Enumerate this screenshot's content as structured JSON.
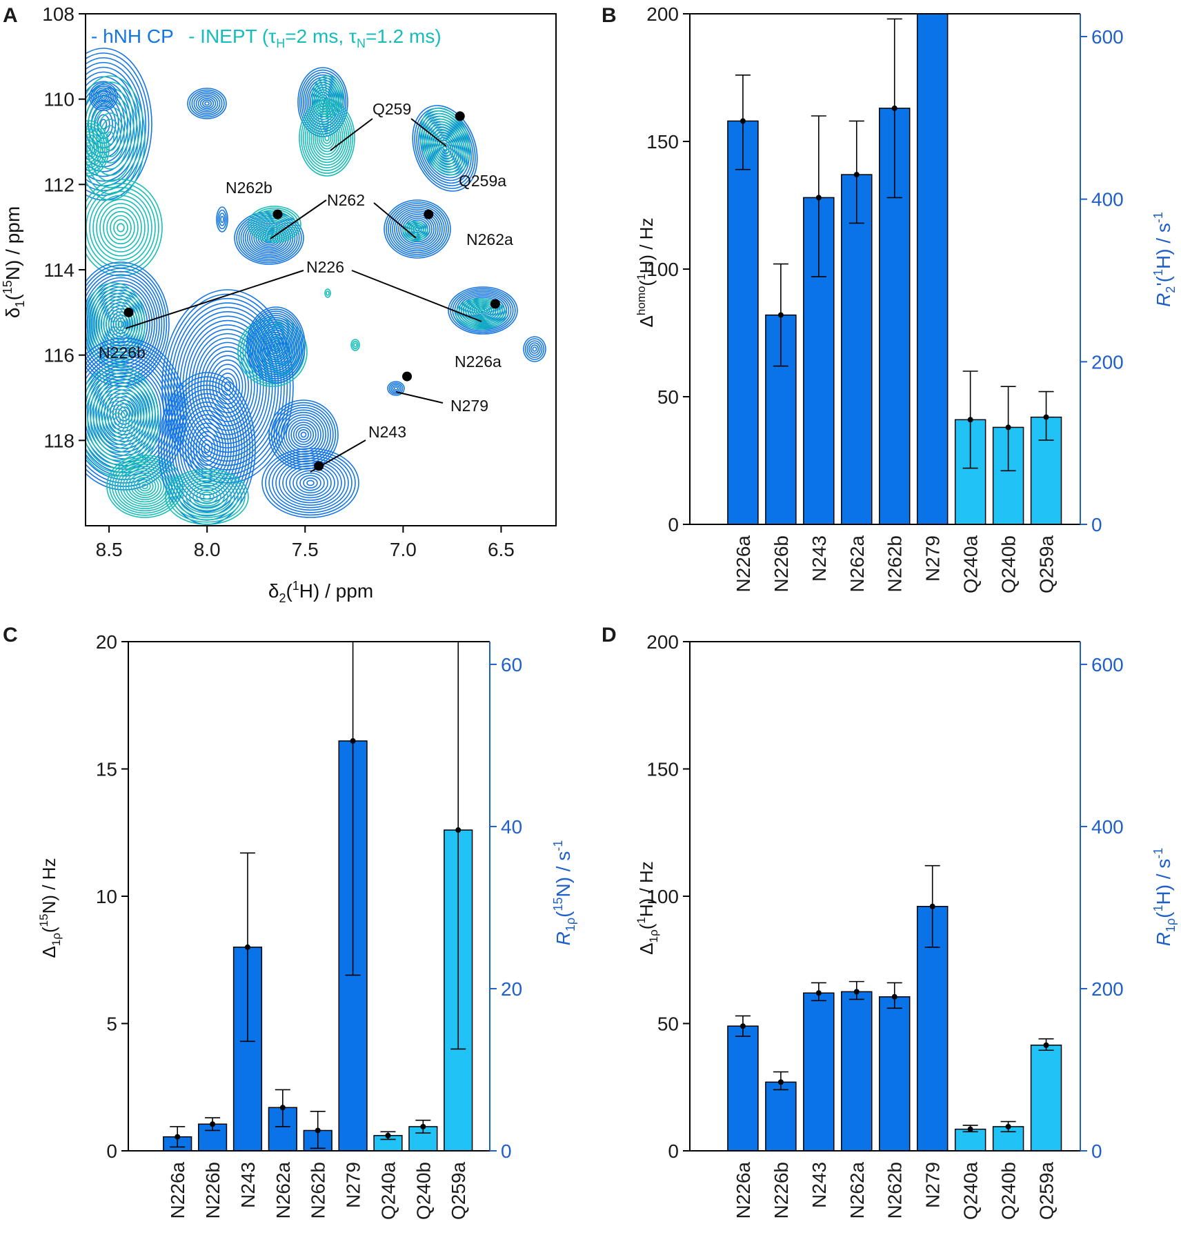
{
  "figure": {
    "panel_labels": [
      "A",
      "B",
      "C",
      "D"
    ]
  },
  "colors": {
    "dark_bar": "#0a73e8",
    "light_bar": "#21c2f5",
    "right_axis": "#1f5fc8",
    "cp_contour": "#1476e6",
    "inept_contour": "#16bdb8"
  },
  "chart_data": [
    {
      "panel": "A",
      "type": "scatter",
      "title": "2D hNH spectrum overlay",
      "legend": {
        "cp": "- hNH CP",
        "inept": "- INEPT (τ",
        "inept_h_sub": "H",
        "inept_mid": "=2 ms, τ",
        "inept_n_sub": "N",
        "inept_end": "=1.2 ms)"
      },
      "xlabel": {
        "pre": "δ",
        "sub": "2",
        "mid": "(",
        "sup": "1",
        "post": "H) / ppm"
      },
      "ylabel": {
        "pre": "δ",
        "sub": "1",
        "mid": "(",
        "sup": "15",
        "post": "N) / ppm"
      },
      "xlim": [
        8.62,
        6.22
      ],
      "ylim": [
        108.0,
        120.0
      ],
      "xticks": [
        "8.5",
        "8.0",
        "7.5",
        "7.0",
        "6.5"
      ],
      "xtick_values": [
        8.5,
        8.0,
        7.5,
        7.0,
        6.5
      ],
      "yticks": [
        "108",
        "110",
        "112",
        "114",
        "116",
        "118"
      ],
      "ytick_values": [
        108,
        110,
        112,
        114,
        116,
        118
      ],
      "peaks": [
        {
          "label": "Q259a",
          "x": 6.71,
          "y": 110.4
        },
        {
          "label": "N262b",
          "x": 7.64,
          "y": 112.7
        },
        {
          "label": "N262a",
          "x": 6.87,
          "y": 112.7
        },
        {
          "label": "N226a",
          "x": 6.53,
          "y": 114.8
        },
        {
          "label": "N226b",
          "x": 8.4,
          "y": 115.0
        },
        {
          "label": "N279",
          "x": 6.98,
          "y": 116.5
        },
        {
          "label": "N243",
          "x": 7.43,
          "y": 118.6
        }
      ],
      "assignments": [
        "Q259",
        "Q259a",
        "N262b",
        "N262",
        "N262a",
        "N226",
        "N226b",
        "N226a",
        "N279",
        "N243"
      ]
    },
    {
      "panel": "B",
      "type": "bar",
      "categories": [
        "N226a",
        "N226b",
        "N243",
        "N262a",
        "N262b",
        "N279",
        "Q240a",
        "Q240b",
        "Q259a"
      ],
      "values": [
        158,
        82,
        128,
        137,
        163,
        200,
        41,
        38,
        42
      ],
      "err_low": [
        139,
        62,
        97,
        118,
        128,
        200,
        22,
        21,
        33
      ],
      "err_high": [
        176,
        102,
        160,
        158,
        198,
        200,
        60,
        54,
        52
      ],
      "light": [
        false,
        false,
        false,
        false,
        false,
        false,
        true,
        true,
        true
      ],
      "ylabel": {
        "pre": "Δ",
        "sup": "homo",
        "mid": "(",
        "sup2": "1",
        "post": "H) / Hz"
      },
      "ylabel_right": {
        "pre": "R",
        "sub": "2",
        "mid": "'(",
        "sup": "1",
        "post": "H) / s",
        "sup2": "-1"
      },
      "ylim": [
        0,
        200
      ],
      "yticks": [
        "0",
        "50",
        "100",
        "150",
        "200"
      ],
      "ytick_values": [
        0,
        50,
        100,
        150,
        200
      ],
      "yticks_right": [
        "0",
        "200",
        "400",
        "600"
      ],
      "ytick_right_values": [
        0,
        200,
        400,
        600
      ],
      "ylim_right": [
        0,
        628
      ]
    },
    {
      "panel": "C",
      "type": "bar",
      "categories": [
        "N226a",
        "N226b",
        "N243",
        "N262a",
        "N262b",
        "N279",
        "Q240a",
        "Q240b",
        "Q259a"
      ],
      "values": [
        0.55,
        1.05,
        8.0,
        1.7,
        0.8,
        16.1,
        0.6,
        0.95,
        12.6
      ],
      "err_low": [
        0.15,
        0.8,
        4.3,
        0.95,
        0.1,
        6.9,
        0.45,
        0.7,
        4.0
      ],
      "err_high": [
        0.95,
        1.3,
        11.7,
        2.4,
        1.55,
        20.0,
        0.75,
        1.2,
        20.0
      ],
      "light": [
        false,
        false,
        false,
        false,
        false,
        false,
        true,
        true,
        true
      ],
      "ylabel": {
        "pre": "Δ",
        "sub": "1ρ",
        "mid": "(",
        "sup": "15",
        "post": "N) / Hz"
      },
      "ylabel_right": {
        "pre": "R",
        "sub": "1ρ",
        "mid": "(",
        "sup": "15",
        "post": "N) / s",
        "sup2": "-1"
      },
      "ylim": [
        0,
        20
      ],
      "yticks": [
        "0",
        "5",
        "10",
        "15",
        "20"
      ],
      "ytick_values": [
        0,
        5,
        10,
        15,
        20
      ],
      "yticks_right": [
        "0",
        "20",
        "40",
        "60"
      ],
      "ytick_right_values": [
        0,
        20,
        40,
        60
      ],
      "ylim_right": [
        0,
        62.8
      ]
    },
    {
      "panel": "D",
      "type": "bar",
      "categories": [
        "N226a",
        "N226b",
        "N243",
        "N262a",
        "N262b",
        "N279",
        "Q240a",
        "Q240b",
        "Q259a"
      ],
      "values": [
        49,
        27,
        62,
        62.5,
        60.5,
        96,
        8.5,
        9.5,
        41.5
      ],
      "err_low": [
        45,
        24,
        59,
        59.5,
        56,
        80,
        7.5,
        7.5,
        39.5
      ],
      "err_high": [
        53,
        31,
        66,
        66.5,
        66,
        112,
        10,
        11.5,
        44
      ],
      "light": [
        false,
        false,
        false,
        false,
        false,
        false,
        true,
        true,
        true
      ],
      "ylabel": {
        "pre": "Δ",
        "sub": "1ρ",
        "mid": "(",
        "sup": "1",
        "post": "H) / Hz"
      },
      "ylabel_right": {
        "pre": "R",
        "sub": "1ρ",
        "mid": "(",
        "sup": "1",
        "post": "H) / s",
        "sup2": "-1"
      },
      "ylim": [
        0,
        200
      ],
      "yticks": [
        "0",
        "50",
        "100",
        "150",
        "200"
      ],
      "ytick_values": [
        0,
        50,
        100,
        150,
        200
      ],
      "yticks_right": [
        "0",
        "200",
        "400",
        "600"
      ],
      "ytick_right_values": [
        0,
        200,
        400,
        600
      ],
      "ylim_right": [
        0,
        628
      ]
    }
  ]
}
